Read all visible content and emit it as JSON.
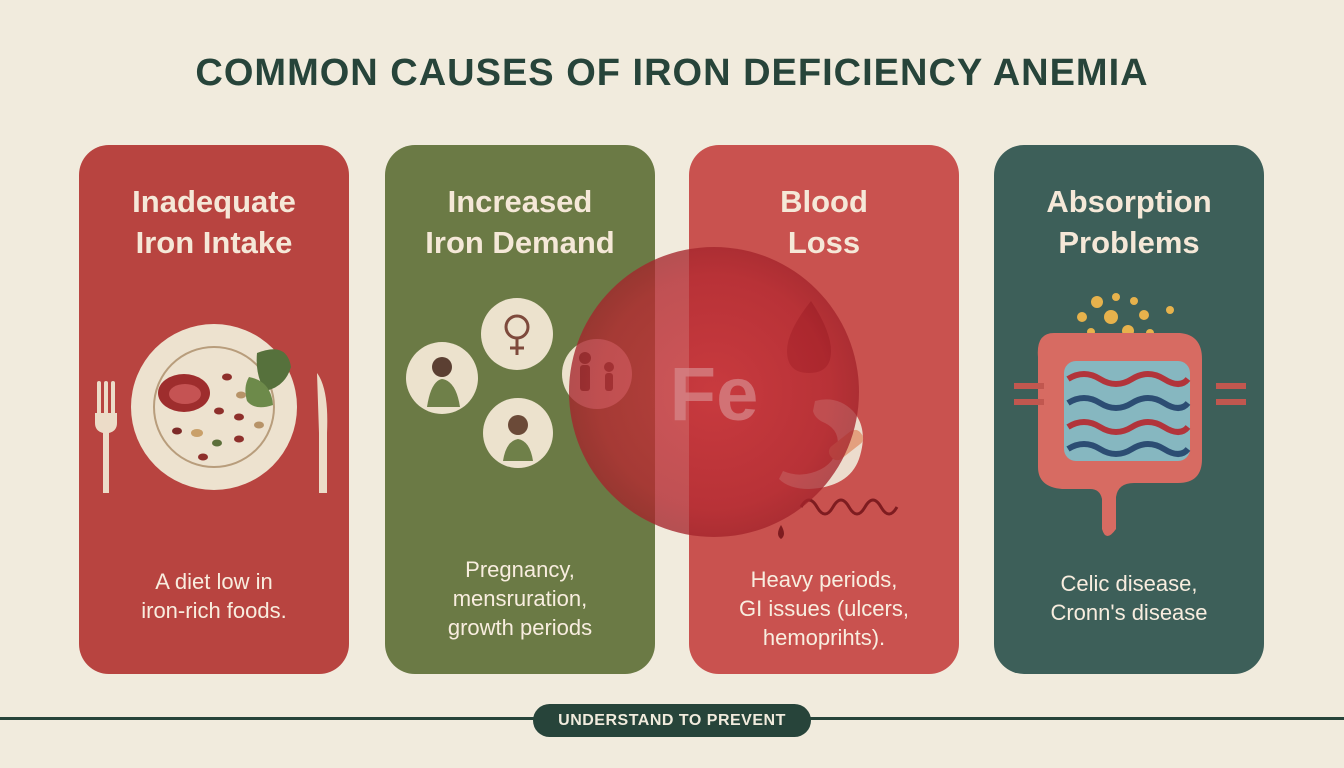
{
  "title": "COMMON CAUSES OF IRON DEFICIENCY ANEMIA",
  "colors": {
    "background": "#f1ebdd",
    "dark_green": "#27443a",
    "card_red": "#b84440",
    "card_olive": "#6b7a45",
    "card_coral": "#c9524f",
    "card_teal": "#3d5f59",
    "cream_text": "#f5e8d8"
  },
  "cards": [
    {
      "title_lines": [
        "Inadequate",
        "Iron Intake"
      ],
      "desc_lines": [
        "A diet low in",
        "iron-rich foods."
      ],
      "icon": "plate-with-food-icon"
    },
    {
      "title_lines": [
        "Increased",
        "Iron Demand"
      ],
      "desc_lines": [
        "Pregnancy,",
        "mensruration,",
        "growth periods"
      ],
      "icon": "life-stages-icons"
    },
    {
      "title_lines": [
        "Blood",
        "Loss"
      ],
      "desc_lines": [
        "Heavy periods,",
        "GI issues (ulcers,",
        "hemoprihts)."
      ],
      "icon": "blood-drop-stomach-icon"
    },
    {
      "title_lines": [
        "Absorption",
        "Problems"
      ],
      "desc_lines": [
        "Celic disease,",
        "Cronn's disease"
      ],
      "icon": "intestine-icon"
    }
  ],
  "center_symbol": "Fe",
  "footer": "UNDERSTAND TO PREVENT"
}
